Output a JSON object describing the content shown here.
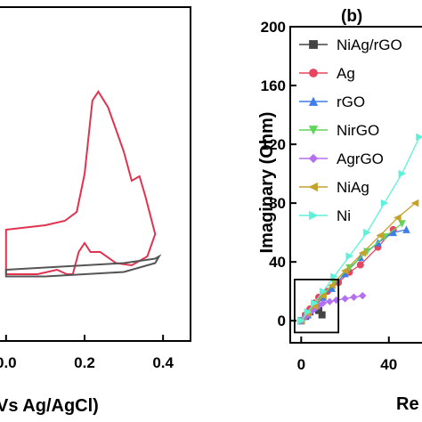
{
  "chart_data": [
    {
      "type": "line",
      "title": "",
      "xlabel": "Vs Ag/AgCl)",
      "ylabel": "",
      "xlim": [
        -0.02,
        0.47
      ],
      "ylim": [
        -0.5,
        1.0
      ],
      "x_ticks": [
        "0.0",
        "0.2",
        "0.4"
      ],
      "x_tick_values": [
        0.0,
        0.2,
        0.4
      ],
      "grid": false,
      "series": [
        {
          "color": "#e0334f",
          "points": [
            [
              0.0,
              0.0
            ],
            [
              0.05,
              0.01
            ],
            [
              0.1,
              0.02
            ],
            [
              0.15,
              0.04
            ],
            [
              0.18,
              0.08
            ],
            [
              0.2,
              0.25
            ],
            [
              0.22,
              0.58
            ],
            [
              0.235,
              0.62
            ],
            [
              0.26,
              0.55
            ],
            [
              0.29,
              0.4
            ],
            [
              0.3,
              0.35
            ],
            [
              0.32,
              0.22
            ],
            [
              0.34,
              0.24
            ],
            [
              0.355,
              0.15
            ],
            [
              0.38,
              -0.02
            ],
            [
              0.36,
              -0.12
            ],
            [
              0.32,
              -0.16
            ],
            [
              0.28,
              -0.15
            ],
            [
              0.24,
              -0.1
            ],
            [
              0.215,
              -0.1
            ],
            [
              0.2,
              -0.06
            ],
            [
              0.185,
              -0.1
            ],
            [
              0.17,
              -0.2
            ],
            [
              0.155,
              -0.2
            ],
            [
              0.13,
              -0.18
            ],
            [
              0.08,
              -0.2
            ],
            [
              0.02,
              -0.2
            ],
            [
              0.0,
              -0.2
            ]
          ]
        },
        {
          "color": "#555555",
          "points": [
            [
              0.0,
              -0.18
            ],
            [
              0.1,
              -0.17
            ],
            [
              0.2,
              -0.16
            ],
            [
              0.3,
              -0.15
            ],
            [
              0.38,
              -0.13
            ],
            [
              0.39,
              -0.12
            ],
            [
              0.38,
              -0.15
            ],
            [
              0.3,
              -0.19
            ],
            [
              0.2,
              -0.2
            ],
            [
              0.1,
              -0.21
            ],
            [
              0.0,
              -0.21
            ]
          ]
        }
      ]
    },
    {
      "type": "scatter",
      "panel_label": "(b)",
      "title": "",
      "xlabel": "Re",
      "ylabel": "Imaginary (Ohm)",
      "xlim": [
        -5,
        60
      ],
      "ylim": [
        -15,
        200
      ],
      "x_ticks": [
        "0",
        "40"
      ],
      "x_tick_values": [
        0,
        40
      ],
      "y_ticks": [
        "0",
        "40",
        "80",
        "120",
        "160",
        "200"
      ],
      "y_tick_values": [
        0,
        40,
        80,
        120,
        160,
        200
      ],
      "grid": false,
      "legend_position": "top-right",
      "inset_box": {
        "x_range": [
          -3,
          17
        ],
        "y_range": [
          -8,
          28
        ]
      },
      "series": [
        {
          "name": "NiAg/rGO",
          "color": "#444444",
          "marker": "square",
          "x": [
            0,
            2,
            4,
            6,
            8,
            9.5
          ],
          "y": [
            0,
            3,
            6,
            9,
            7,
            4
          ]
        },
        {
          "name": "Ag",
          "color": "#e8455f",
          "marker": "circle",
          "x": [
            0,
            2,
            4,
            6,
            8,
            10,
            12,
            17,
            22,
            27,
            35,
            42
          ],
          "y": [
            0,
            4,
            8,
            12,
            16,
            18,
            20,
            26,
            33,
            38,
            50,
            62
          ]
        },
        {
          "name": "rGO",
          "color": "#3d7ee8",
          "marker": "triangle-up",
          "x": [
            0,
            3,
            6,
            10,
            14,
            20,
            27,
            35,
            42,
            48
          ],
          "y": [
            0,
            4,
            9,
            16,
            22,
            32,
            43,
            53,
            60,
            62
          ]
        },
        {
          "name": "NirGO",
          "color": "#5fd65a",
          "marker": "triangle-down",
          "x": [
            0,
            3,
            6,
            10,
            15,
            22,
            30,
            38,
            46
          ],
          "y": [
            0,
            5,
            10,
            18,
            26,
            36,
            47,
            57,
            66
          ]
        },
        {
          "name": "AgrGO",
          "color": "#b56ef0",
          "marker": "diamond",
          "x": [
            0,
            1.5,
            3,
            4.5,
            6,
            8,
            10,
            13,
            16,
            20,
            24,
            28
          ],
          "y": [
            0,
            2,
            4,
            6,
            8,
            10,
            12,
            13,
            14,
            15,
            16,
            17
          ]
        },
        {
          "name": "NiAg",
          "color": "#c5a22b",
          "marker": "triangle-left",
          "x": [
            0,
            3,
            6,
            10,
            14,
            20,
            28,
            36,
            44,
            52
          ],
          "y": [
            0,
            5,
            10,
            17,
            24,
            34,
            46,
            58,
            70,
            80
          ]
        },
        {
          "name": "Ni",
          "color": "#5ff0d8",
          "marker": "triangle-right",
          "x": [
            0,
            3,
            6,
            10,
            15,
            22,
            30,
            38,
            46,
            54
          ],
          "y": [
            0,
            6,
            12,
            20,
            30,
            44,
            60,
            80,
            100,
            125
          ]
        }
      ]
    }
  ]
}
